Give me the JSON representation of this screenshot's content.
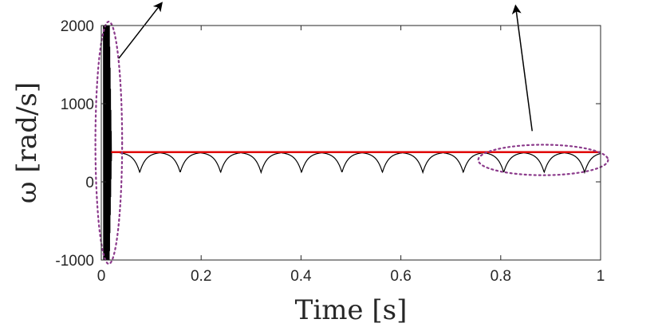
{
  "chart_data": {
    "type": "line",
    "xlabel": "Time [s]",
    "ylabel": "ω [rad/s]",
    "xlim": [
      0,
      1
    ],
    "ylim": [
      -1000,
      2000
    ],
    "xticks": [
      0,
      0.2,
      0.4,
      0.6,
      0.8,
      1
    ],
    "xtick_labels": [
      "0",
      "0.2",
      "0.4",
      "0.6",
      "0.8",
      "1"
    ],
    "yticks": [
      -1000,
      0,
      1000,
      2000
    ],
    "ytick_labels": [
      "-1000",
      "0",
      "1000",
      "2000"
    ],
    "grid": false,
    "series": [
      {
        "color": "#000000",
        "description": "speed with initial high-amplitude oscillation then periodic dips",
        "startup_oscillation": {
          "x_range": [
            0.005,
            0.02
          ],
          "y_range": [
            -1000,
            2000
          ]
        },
        "steady_value": 380,
        "dip_min": 120,
        "dip_period": 0.081,
        "first_dip": 0.077
      },
      {
        "color": "#e00000",
        "description": "reference / average speed",
        "x": [
          0.02,
          1
        ],
        "y": [
          380,
          380
        ]
      }
    ],
    "annotations": [
      {
        "shape": "ellipse",
        "style": "dotted",
        "color": "#8b3a8b",
        "center": [
          0.015,
          500
        ],
        "radius": [
          0.04,
          1550
        ]
      },
      {
        "shape": "ellipse",
        "style": "dotted",
        "color": "#8b3a8b",
        "center": [
          0.885,
          280
        ],
        "radius": [
          0.13,
          195
        ]
      },
      {
        "shape": "arrow",
        "color": "#000000",
        "from": [
          0.035,
          1580
        ],
        "to": [
          0.12,
          2280
        ]
      },
      {
        "shape": "arrow",
        "color": "#000000",
        "from": [
          0.863,
          650
        ],
        "to": [
          0.83,
          2240
        ]
      }
    ]
  }
}
